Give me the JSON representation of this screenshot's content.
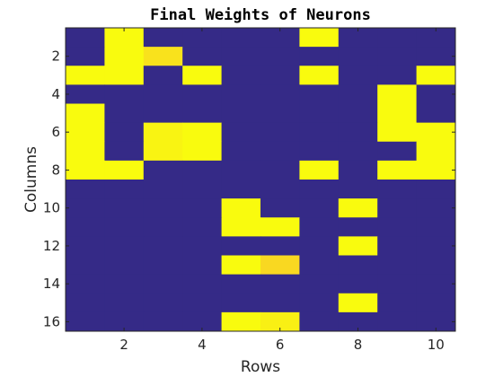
{
  "chart_data": {
    "type": "heatmap",
    "title": "Final Weights of Neurons",
    "xlabel": "Rows",
    "ylabel": "Columns",
    "x_range": [
      1,
      10
    ],
    "y_range": [
      1,
      16
    ],
    "y_reversed": true,
    "grid": false,
    "x_ticks": [
      2,
      4,
      6,
      8,
      10
    ],
    "y_ticks": [
      2,
      4,
      6,
      8,
      10,
      12,
      14,
      16
    ],
    "colormap": {
      "low": "#352a87",
      "high": "#f9fb0e"
    },
    "value_range": [
      0,
      1
    ],
    "values": [
      [
        0,
        1,
        0,
        0,
        0,
        0,
        1,
        0,
        0,
        0
      ],
      [
        0,
        1,
        0.93,
        0,
        0,
        0,
        0,
        0,
        0,
        0
      ],
      [
        1,
        1,
        0,
        1,
        0,
        0,
        1,
        0,
        0,
        1
      ],
      [
        0,
        0,
        0,
        0,
        0,
        0,
        0,
        0,
        1,
        0
      ],
      [
        1,
        0,
        0,
        0,
        0,
        0,
        0,
        0,
        1,
        0
      ],
      [
        1,
        0,
        0.98,
        1,
        0,
        0,
        0,
        0,
        1,
        1
      ],
      [
        1,
        0,
        0.98,
        1,
        0,
        0,
        0,
        0,
        0,
        1
      ],
      [
        1,
        1,
        0,
        0,
        0,
        0,
        1,
        0,
        1,
        1
      ],
      [
        0,
        0,
        0,
        0,
        0,
        0,
        0,
        0,
        0,
        0
      ],
      [
        0,
        0,
        0,
        0,
        1,
        0,
        0,
        1,
        0,
        0
      ],
      [
        0,
        0,
        0,
        0,
        1,
        1,
        0,
        0,
        0,
        0
      ],
      [
        0,
        0,
        0,
        0,
        0,
        0,
        0,
        1,
        0,
        0
      ],
      [
        0,
        0,
        0,
        0,
        1,
        0.9,
        0,
        0,
        0,
        0
      ],
      [
        0,
        0,
        0,
        0,
        0,
        0,
        0,
        0,
        0,
        0
      ],
      [
        0,
        0,
        0,
        0,
        0,
        0,
        0,
        1,
        0,
        0
      ],
      [
        0,
        0,
        0,
        0,
        1,
        0.97,
        0,
        0,
        0,
        0
      ]
    ]
  }
}
